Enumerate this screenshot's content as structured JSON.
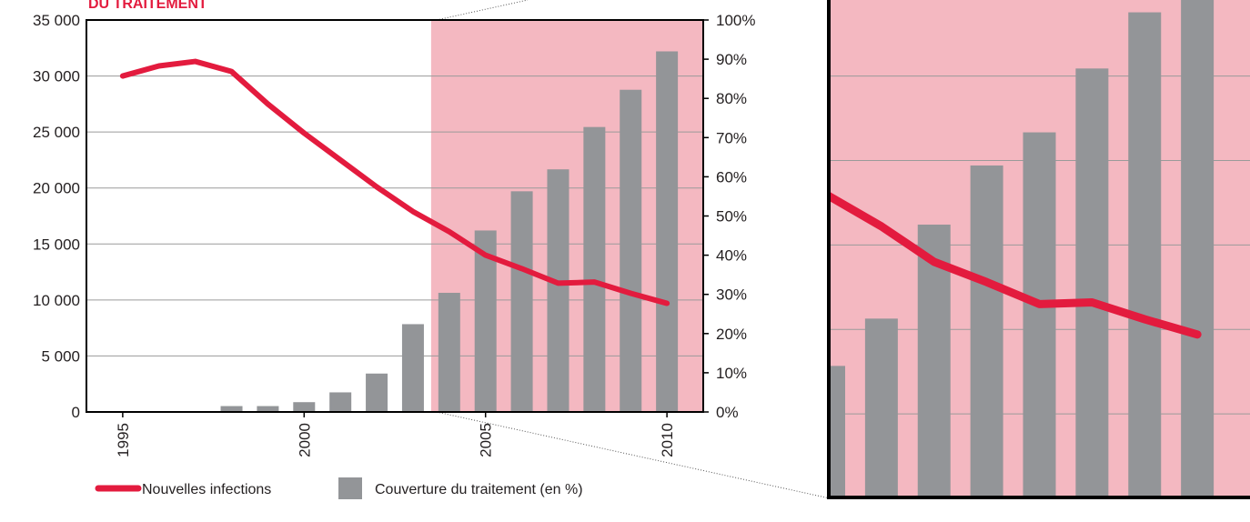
{
  "chart_data": {
    "type": "combo",
    "title": "DU TRAITEMENT",
    "x": [
      1995,
      1996,
      1997,
      1998,
      1999,
      2000,
      2001,
      2002,
      2003,
      2004,
      2005,
      2006,
      2007,
      2008,
      2009,
      2010
    ],
    "xlim": [
      1994,
      2011
    ],
    "xticks": [
      1995,
      2000,
      2005,
      2010
    ],
    "ylim": [
      0,
      35000
    ],
    "yticks": [
      0,
      {
        "value": 5000,
        "label": "5 000"
      },
      {
        "value": 10000,
        "label": "10 000"
      },
      {
        "value": 15000,
        "label": "15 000"
      },
      {
        "value": 20000,
        "label": "20 000"
      },
      {
        "value": 25000,
        "label": "25 000"
      },
      {
        "value": 30000,
        "label": "30 000"
      },
      {
        "value": 35000,
        "label": "35 000"
      }
    ],
    "y2lim": [
      0,
      100
    ],
    "y2ticks": [
      {
        "value": 0,
        "label": "0%"
      },
      {
        "value": 10,
        "label": "10%"
      },
      {
        "value": 20,
        "label": "20%"
      },
      {
        "value": 30,
        "label": "30%"
      },
      {
        "value": 40,
        "label": "40%"
      },
      {
        "value": 50,
        "label": "50%"
      },
      {
        "value": 60,
        "label": "60%"
      },
      {
        "value": 70,
        "label": "70%"
      },
      {
        "value": 80,
        "label": "80%"
      },
      {
        "value": 90,
        "label": "90%"
      },
      {
        "value": 100,
        "label": "100%"
      }
    ],
    "grid": true,
    "highlight": [
      2003.5,
      2011
    ],
    "highlight_color": "#f4b8c1",
    "series": [
      {
        "name": "Couverture du traitement (en %)",
        "type": "bar",
        "axis": "y2",
        "color": "#939598",
        "values": [
          null,
          null,
          null,
          1.5,
          1.5,
          2.5,
          5,
          9.8,
          22.4,
          30.4,
          46.3,
          56.3,
          61.9,
          72.7,
          82.2,
          92
        ]
      },
      {
        "name": "Nouvelles infections",
        "type": "line",
        "color": "#e31b3e",
        "values": [
          30000,
          30900,
          31300,
          30400,
          27500,
          24900,
          22500,
          20100,
          17900,
          16100,
          14000,
          12800,
          11500,
          11600,
          10600,
          9700
        ]
      }
    ],
    "inset": {
      "xlim": [
        2003,
        2011
      ],
      "ylim": [
        0,
        29500
      ]
    }
  }
}
